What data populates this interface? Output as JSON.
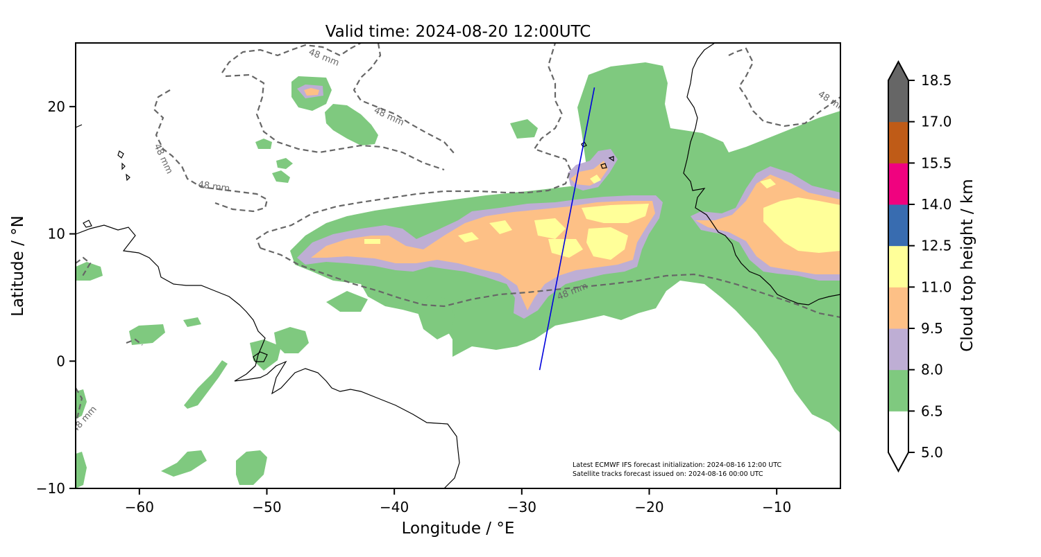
{
  "title": "Valid time: 2024-08-20 12:00UTC",
  "xlabel": "Longitude / °E",
  "ylabel": "Latitude / °N",
  "x_ticks": [
    {
      "value": -60,
      "label": "−60"
    },
    {
      "value": -50,
      "label": "−50"
    },
    {
      "value": -40,
      "label": "−40"
    },
    {
      "value": -30,
      "label": "−30"
    },
    {
      "value": -20,
      "label": "−20"
    },
    {
      "value": -10,
      "label": "−10"
    }
  ],
  "y_ticks": [
    {
      "value": 20,
      "label": "20"
    },
    {
      "value": 10,
      "label": "10"
    },
    {
      "value": 0,
      "label": "0"
    },
    {
      "value": -10,
      "label": "−10"
    }
  ],
  "extent": {
    "lon": [
      -65,
      -5
    ],
    "lat": [
      -10,
      25
    ]
  },
  "colorbar": {
    "label": "Cloud top height / km",
    "levels": [
      {
        "value": 5.0,
        "label": "5.0"
      },
      {
        "value": 6.5,
        "label": "6.5"
      },
      {
        "value": 8.0,
        "label": "8.0"
      },
      {
        "value": 9.5,
        "label": "9.5"
      },
      {
        "value": 11.0,
        "label": "11.0"
      },
      {
        "value": 12.5,
        "label": "12.5"
      },
      {
        "value": 14.0,
        "label": "14.0"
      },
      {
        "value": 15.5,
        "label": "15.5"
      },
      {
        "value": 17.0,
        "label": "17.0"
      },
      {
        "value": 18.5,
        "label": "18.5"
      }
    ],
    "colors": [
      "#ffffff",
      "#7fc97f",
      "#beaed4",
      "#fdc086",
      "#ffff99",
      "#386cb0",
      "#f0027f",
      "#bf5b17",
      "#666666"
    ],
    "extend": "both"
  },
  "contour_label": "48 mm",
  "satellite_track": {
    "color": "#0000dd",
    "start": {
      "lon": -28.6,
      "lat": -0.7
    },
    "end": {
      "lon": -24.3,
      "lat": 21.5
    }
  },
  "annotation": {
    "line1": "Latest ECMWF IFS forecast initialization: 2024-08-16 12:00 UTC",
    "line2": "Satellite tracks forecast issued on: 2024-08-16 00:00 UTC"
  }
}
